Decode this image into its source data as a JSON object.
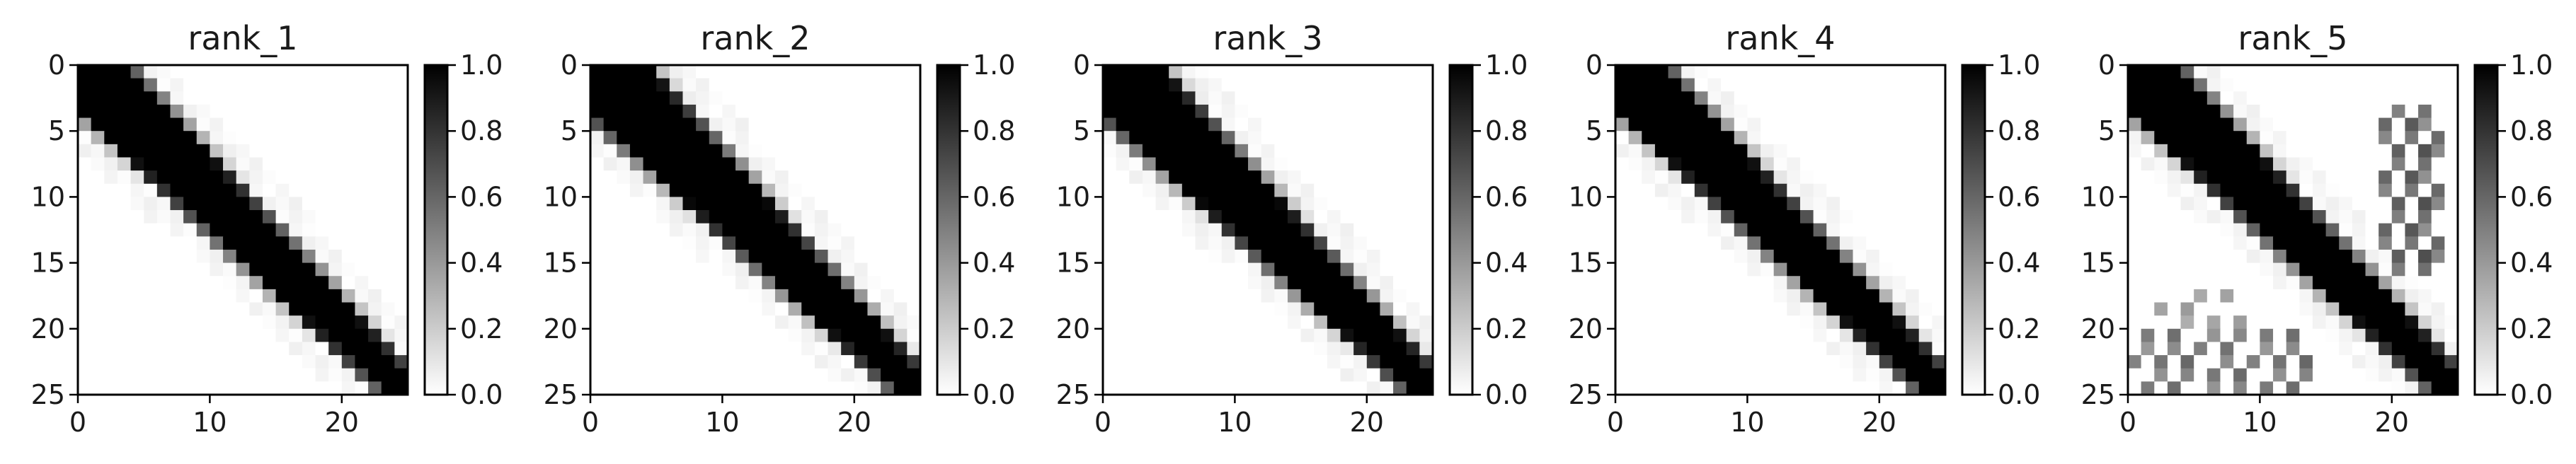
{
  "chart_data": [
    {
      "type": "heatmap",
      "title": "rank_1",
      "grid_size": 25,
      "xlim": [
        0,
        25
      ],
      "ylim": [
        25,
        0
      ],
      "xticks": [
        0,
        10,
        20
      ],
      "yticks": [
        0,
        5,
        10,
        15,
        20,
        25
      ],
      "colorbar": {
        "vmin": 0.0,
        "vmax": 1.0,
        "ticks": [
          "0.0",
          "0.2",
          "0.4",
          "0.6",
          "0.8",
          "1.0"
        ],
        "colormap": "greys"
      },
      "band": {
        "description": "dark diagonal band of values near 1.0",
        "half_width_top": 3.5,
        "half_width_bottom": 1.5,
        "noise": false
      }
    },
    {
      "type": "heatmap",
      "title": "rank_2",
      "grid_size": 25,
      "xlim": [
        0,
        25
      ],
      "ylim": [
        25,
        0
      ],
      "xticks": [
        0,
        10,
        20
      ],
      "yticks": [
        0,
        5,
        10,
        15,
        20,
        25
      ],
      "colorbar": {
        "vmin": 0.0,
        "vmax": 1.0,
        "ticks": [
          "0.0",
          "0.2",
          "0.4",
          "0.6",
          "0.8",
          "1.0"
        ],
        "colormap": "greys"
      },
      "band": {
        "half_width_top": 4.0,
        "half_width_bottom": 1.5,
        "noise": false
      }
    },
    {
      "type": "heatmap",
      "title": "rank_3",
      "grid_size": 25,
      "xlim": [
        0,
        25
      ],
      "ylim": [
        25,
        0
      ],
      "xticks": [
        0,
        10,
        20
      ],
      "yticks": [
        0,
        5,
        10,
        15,
        20,
        25
      ],
      "colorbar": {
        "vmin": 0.0,
        "vmax": 1.0,
        "ticks": [
          "0.0",
          "0.2",
          "0.4",
          "0.6",
          "0.8",
          "1.0"
        ],
        "colormap": "greys"
      },
      "band": {
        "half_width_top": 4.0,
        "half_width_bottom": 1.5,
        "noise": false
      }
    },
    {
      "type": "heatmap",
      "title": "rank_4",
      "grid_size": 25,
      "xlim": [
        0,
        25
      ],
      "ylim": [
        25,
        0
      ],
      "xticks": [
        0,
        10,
        20
      ],
      "yticks": [
        0,
        5,
        10,
        15,
        20,
        25
      ],
      "colorbar": {
        "vmin": 0.0,
        "vmax": 1.0,
        "ticks": [
          "0.0",
          "0.2",
          "0.4",
          "0.6",
          "0.8",
          "1.0"
        ],
        "colormap": "greys"
      },
      "band": {
        "half_width_top": 3.5,
        "half_width_bottom": 1.5,
        "noise": false
      }
    },
    {
      "type": "heatmap",
      "title": "rank_5",
      "grid_size": 25,
      "xlim": [
        0,
        25
      ],
      "ylim": [
        25,
        0
      ],
      "xticks": [
        0,
        10,
        20
      ],
      "yticks": [
        0,
        5,
        10,
        15,
        20,
        25
      ],
      "colorbar": {
        "vmin": 0.0,
        "vmax": 1.0,
        "ticks": [
          "0.0",
          "0.2",
          "0.4",
          "0.6",
          "0.8",
          "1.0"
        ],
        "colormap": "greys"
      },
      "band": {
        "half_width_top": 3.5,
        "half_width_bottom": 1.5,
        "noise": true
      }
    }
  ]
}
